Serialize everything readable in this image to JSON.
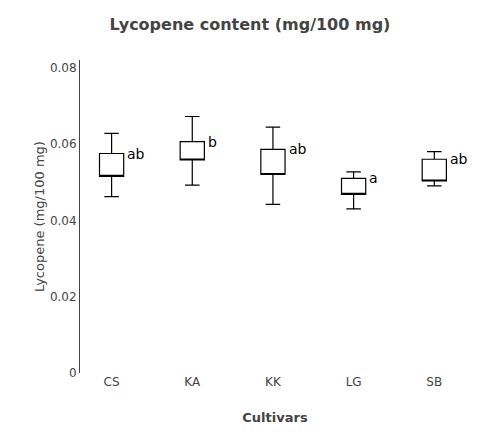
{
  "chart_data": {
    "type": "box",
    "title": "Lycopene content (mg/100 mg)",
    "xlabel": "Cultivars",
    "ylabel": "Lycopene (mg/100 mg)",
    "categories": [
      "CS",
      "KA",
      "KK",
      "LG",
      "SB"
    ],
    "box_low": [
      0.0515,
      0.0558,
      0.052,
      0.0468,
      0.0503
    ],
    "box_high": [
      0.0575,
      0.0606,
      0.0586,
      0.051,
      0.056
    ],
    "whisker_low": [
      0.0462,
      0.0492,
      0.0442,
      0.043,
      0.049
    ],
    "whisker_high": [
      0.0628,
      0.0672,
      0.0644,
      0.0527,
      0.058
    ],
    "labels": [
      "ab",
      "b",
      "ab",
      "a",
      "ab"
    ],
    "color": "#000000",
    "ylim": [
      0,
      0.082
    ],
    "yticks": [
      0,
      0.02,
      0.04,
      0.06,
      0.08
    ],
    "grid": false
  }
}
